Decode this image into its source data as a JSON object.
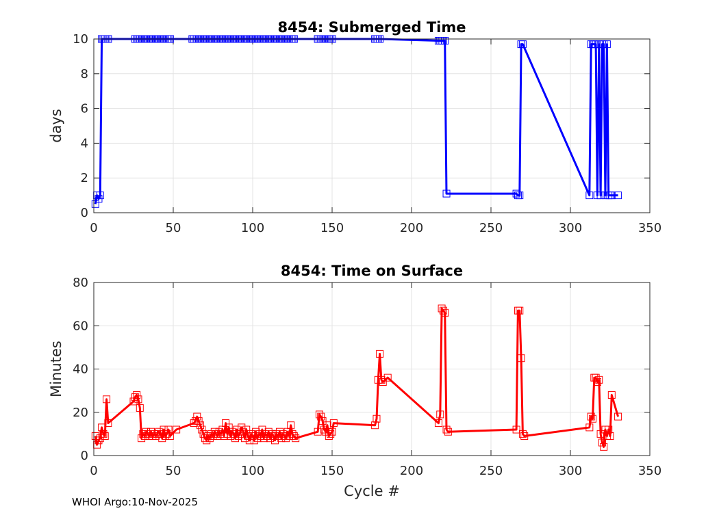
{
  "footer": "WHOI Argo:10-Nov-2025",
  "chart_data": [
    {
      "type": "line",
      "title": "8454: Submerged Time",
      "xlabel": "",
      "ylabel": "days",
      "xlim": [
        0,
        350
      ],
      "ylim": [
        0,
        10
      ],
      "xticks": [
        "0",
        "50",
        "100",
        "150",
        "200",
        "250",
        "300",
        "350"
      ],
      "yticks": [
        "0",
        "2",
        "4",
        "6",
        "8",
        "10"
      ],
      "grid": true,
      "color": "#0000ff",
      "marker": "square",
      "series": [
        {
          "name": "Submerged Time",
          "x": [
            1,
            2,
            3,
            4,
            5,
            6,
            7,
            8,
            9,
            26,
            27,
            28,
            29,
            30,
            31,
            32,
            33,
            34,
            35,
            36,
            37,
            38,
            39,
            40,
            41,
            42,
            43,
            44,
            45,
            46,
            47,
            48,
            62,
            63,
            64,
            65,
            66,
            67,
            68,
            69,
            70,
            71,
            72,
            73,
            74,
            75,
            76,
            77,
            78,
            79,
            80,
            81,
            82,
            83,
            84,
            85,
            86,
            87,
            88,
            89,
            90,
            91,
            92,
            93,
            94,
            95,
            96,
            97,
            98,
            99,
            100,
            101,
            102,
            103,
            104,
            105,
            106,
            107,
            108,
            109,
            110,
            111,
            112,
            113,
            114,
            115,
            116,
            117,
            118,
            119,
            120,
            121,
            122,
            123,
            124,
            125,
            126,
            141,
            142,
            143,
            144,
            145,
            146,
            147,
            148,
            149,
            150,
            177,
            178,
            179,
            180,
            217,
            218,
            219,
            220,
            221,
            222,
            266,
            267,
            268,
            269,
            270,
            312,
            313,
            314,
            315,
            316,
            317,
            318,
            319,
            320,
            321,
            322,
            323,
            324,
            325,
            326,
            330
          ],
          "y": [
            0.5,
            1,
            0.8,
            1,
            10,
            10,
            10,
            10,
            10,
            10,
            10,
            10,
            10,
            10,
            10,
            10,
            10,
            10,
            10,
            10,
            10,
            10,
            10,
            10,
            10,
            10,
            10,
            10,
            10,
            10,
            10,
            10,
            10,
            10,
            10,
            10,
            10,
            10,
            10,
            10,
            10,
            10,
            10,
            10,
            10,
            10,
            10,
            10,
            10,
            10,
            10,
            10,
            10,
            10,
            10,
            10,
            10,
            10,
            10,
            10,
            10,
            10,
            10,
            10,
            10,
            10,
            10,
            10,
            10,
            10,
            10,
            10,
            10,
            10,
            10,
            10,
            10,
            10,
            10,
            10,
            10,
            10,
            10,
            10,
            10,
            10,
            10,
            10,
            10,
            10,
            10,
            10,
            10,
            10,
            10,
            10,
            10,
            10,
            10,
            10,
            10,
            10,
            10,
            10,
            10,
            10,
            10,
            10,
            10,
            10,
            10,
            9.9,
            9.9,
            9.9,
            9.9,
            9.9,
            1.1,
            1.1,
            1,
            1,
            9.7,
            9.7,
            1,
            9.7,
            9.7,
            9.7,
            9.7,
            1,
            9.7,
            1,
            9.7,
            9.7,
            1,
            9.7,
            1,
            1,
            1,
            1
          ]
        }
      ]
    },
    {
      "type": "line",
      "title": "8454: Time on Surface",
      "xlabel": "Cycle #",
      "ylabel": "Minutes",
      "xlim": [
        0,
        350
      ],
      "ylim": [
        0,
        80
      ],
      "xticks": [
        "0",
        "50",
        "100",
        "150",
        "200",
        "250",
        "300",
        "350"
      ],
      "yticks": [
        "0",
        "20",
        "40",
        "60",
        "80"
      ],
      "grid": true,
      "color": "#ff0000",
      "marker": "square",
      "series": [
        {
          "name": "Time on Surface",
          "x": [
            1,
            2,
            3,
            4,
            5,
            6,
            7,
            8,
            9,
            25,
            26,
            27,
            28,
            29,
            30,
            31,
            32,
            33,
            34,
            35,
            36,
            37,
            38,
            39,
            40,
            41,
            42,
            43,
            44,
            45,
            46,
            47,
            48,
            52,
            63,
            64,
            65,
            66,
            67,
            68,
            69,
            70,
            71,
            72,
            73,
            74,
            75,
            76,
            77,
            78,
            79,
            80,
            81,
            82,
            83,
            84,
            85,
            86,
            87,
            88,
            89,
            90,
            91,
            92,
            93,
            94,
            95,
            96,
            97,
            98,
            99,
            100,
            101,
            102,
            103,
            104,
            105,
            106,
            107,
            108,
            109,
            110,
            111,
            112,
            113,
            114,
            115,
            116,
            117,
            118,
            119,
            120,
            121,
            122,
            123,
            124,
            125,
            126,
            127,
            141,
            142,
            143,
            144,
            145,
            146,
            147,
            148,
            149,
            150,
            151,
            177,
            178,
            179,
            180,
            181,
            182,
            185,
            217,
            218,
            219,
            220,
            221,
            222,
            223,
            266,
            267,
            268,
            269,
            270,
            271,
            312,
            313,
            314,
            315,
            316,
            317,
            318,
            319,
            320,
            321,
            322,
            323,
            324,
            325,
            326,
            330
          ],
          "y": [
            9,
            5,
            7,
            8,
            13,
            10,
            9,
            26,
            15,
            25,
            27,
            28,
            26,
            22,
            8,
            10,
            9,
            11,
            10,
            9,
            11,
            9,
            10,
            9,
            10,
            11,
            10,
            8,
            12,
            9,
            10,
            12,
            9,
            12,
            15,
            16,
            18,
            16,
            14,
            12,
            10,
            8,
            7,
            9,
            8,
            10,
            9,
            11,
            10,
            9,
            11,
            10,
            12,
            9,
            15,
            10,
            13,
            9,
            11,
            10,
            8,
            12,
            9,
            10,
            13,
            11,
            8,
            12,
            9,
            7,
            10,
            9,
            7,
            11,
            8,
            10,
            9,
            12,
            8,
            10,
            9,
            11,
            8,
            10,
            9,
            7,
            10,
            9,
            11,
            8,
            10,
            9,
            8,
            11,
            9,
            14,
            10,
            9,
            8,
            11,
            19,
            18,
            16,
            12,
            11,
            14,
            9,
            10,
            11,
            15,
            14,
            17,
            35,
            47,
            35,
            34,
            36,
            15,
            19,
            68,
            67,
            66,
            12,
            11,
            12,
            67,
            67,
            45,
            10,
            9,
            13,
            18,
            17,
            36,
            36,
            34,
            35,
            10,
            6,
            4,
            12,
            9,
            12,
            9,
            28,
            18
          ]
        }
      ]
    }
  ]
}
